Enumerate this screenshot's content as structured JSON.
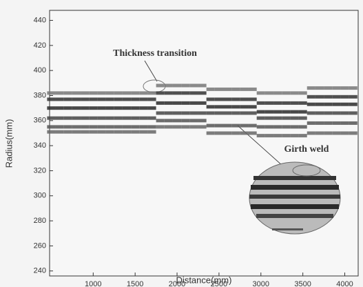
{
  "chart_data": {
    "type": "scatter",
    "x_label": "Distance(mm)",
    "y_label": "Radius(mm)",
    "annotations": [
      "Thickness transition",
      "Girth weld"
    ],
    "xlim": [
      480,
      4160
    ],
    "xticks": [
      1000,
      1500,
      2000,
      2500,
      3000,
      3500,
      4000
    ],
    "ylim": [
      236,
      448
    ],
    "yticks": [
      240,
      260,
      280,
      300,
      320,
      340,
      360,
      380,
      400,
      420,
      440
    ],
    "x": [
      500,
      600,
      700,
      800,
      900,
      1000,
      1100,
      1200,
      1300,
      1400,
      1500,
      1600,
      1700,
      1800,
      1900,
      2000,
      2100,
      2200,
      2300,
      2400,
      2500,
      2600,
      2700,
      2800,
      2900,
      3000,
      3100,
      3200,
      3300,
      3400,
      3500,
      3600,
      3700,
      3800,
      3900,
      4000,
      4100
    ],
    "series": [
      {
        "color": "#777777",
        "values": [
          382,
          382,
          382,
          382,
          382,
          382,
          382,
          382,
          382,
          382,
          382,
          382,
          382,
          388,
          388,
          388,
          388,
          388,
          388,
          385,
          385,
          385,
          385,
          385,
          385,
          382,
          382,
          382,
          382,
          382,
          382,
          386,
          386,
          386,
          386,
          386,
          386
        ]
      },
      {
        "color": "#333333",
        "values": [
          377,
          377,
          377,
          377,
          377,
          377,
          377,
          377,
          377,
          377,
          377,
          377,
          377,
          382,
          382,
          382,
          382,
          382,
          382,
          377,
          377,
          377,
          377,
          377,
          377,
          374,
          374,
          374,
          374,
          374,
          374,
          379,
          379,
          379,
          379,
          379,
          379
        ]
      },
      {
        "color": "#2a2a2a",
        "values": [
          370,
          370,
          370,
          370,
          370,
          370,
          370,
          370,
          370,
          370,
          370,
          370,
          370,
          374,
          374,
          374,
          374,
          374,
          374,
          371,
          371,
          371,
          371,
          371,
          371,
          367,
          367,
          367,
          367,
          367,
          367,
          373,
          373,
          373,
          373,
          373,
          373
        ]
      },
      {
        "color": "#444444",
        "values": [
          362,
          362,
          362,
          362,
          362,
          362,
          362,
          362,
          362,
          362,
          362,
          362,
          362,
          366,
          366,
          366,
          366,
          366,
          366,
          366,
          366,
          366,
          366,
          366,
          366,
          362,
          362,
          362,
          362,
          362,
          362,
          366,
          366,
          366,
          366,
          366,
          366
        ]
      },
      {
        "color": "#555555",
        "values": [
          355,
          355,
          355,
          355,
          355,
          355,
          355,
          355,
          355,
          355,
          355,
          355,
          355,
          360,
          360,
          360,
          360,
          360,
          360,
          356,
          356,
          356,
          356,
          356,
          356,
          355,
          355,
          355,
          355,
          355,
          355,
          358,
          358,
          358,
          358,
          358,
          358
        ]
      },
      {
        "color": "#666666",
        "values": [
          351,
          351,
          351,
          351,
          351,
          351,
          351,
          351,
          351,
          351,
          351,
          351,
          351,
          355,
          355,
          355,
          355,
          355,
          355,
          350,
          350,
          350,
          350,
          350,
          350,
          348,
          348,
          348,
          348,
          348,
          348,
          350,
          350,
          350,
          350,
          350,
          350
        ]
      }
    ]
  }
}
